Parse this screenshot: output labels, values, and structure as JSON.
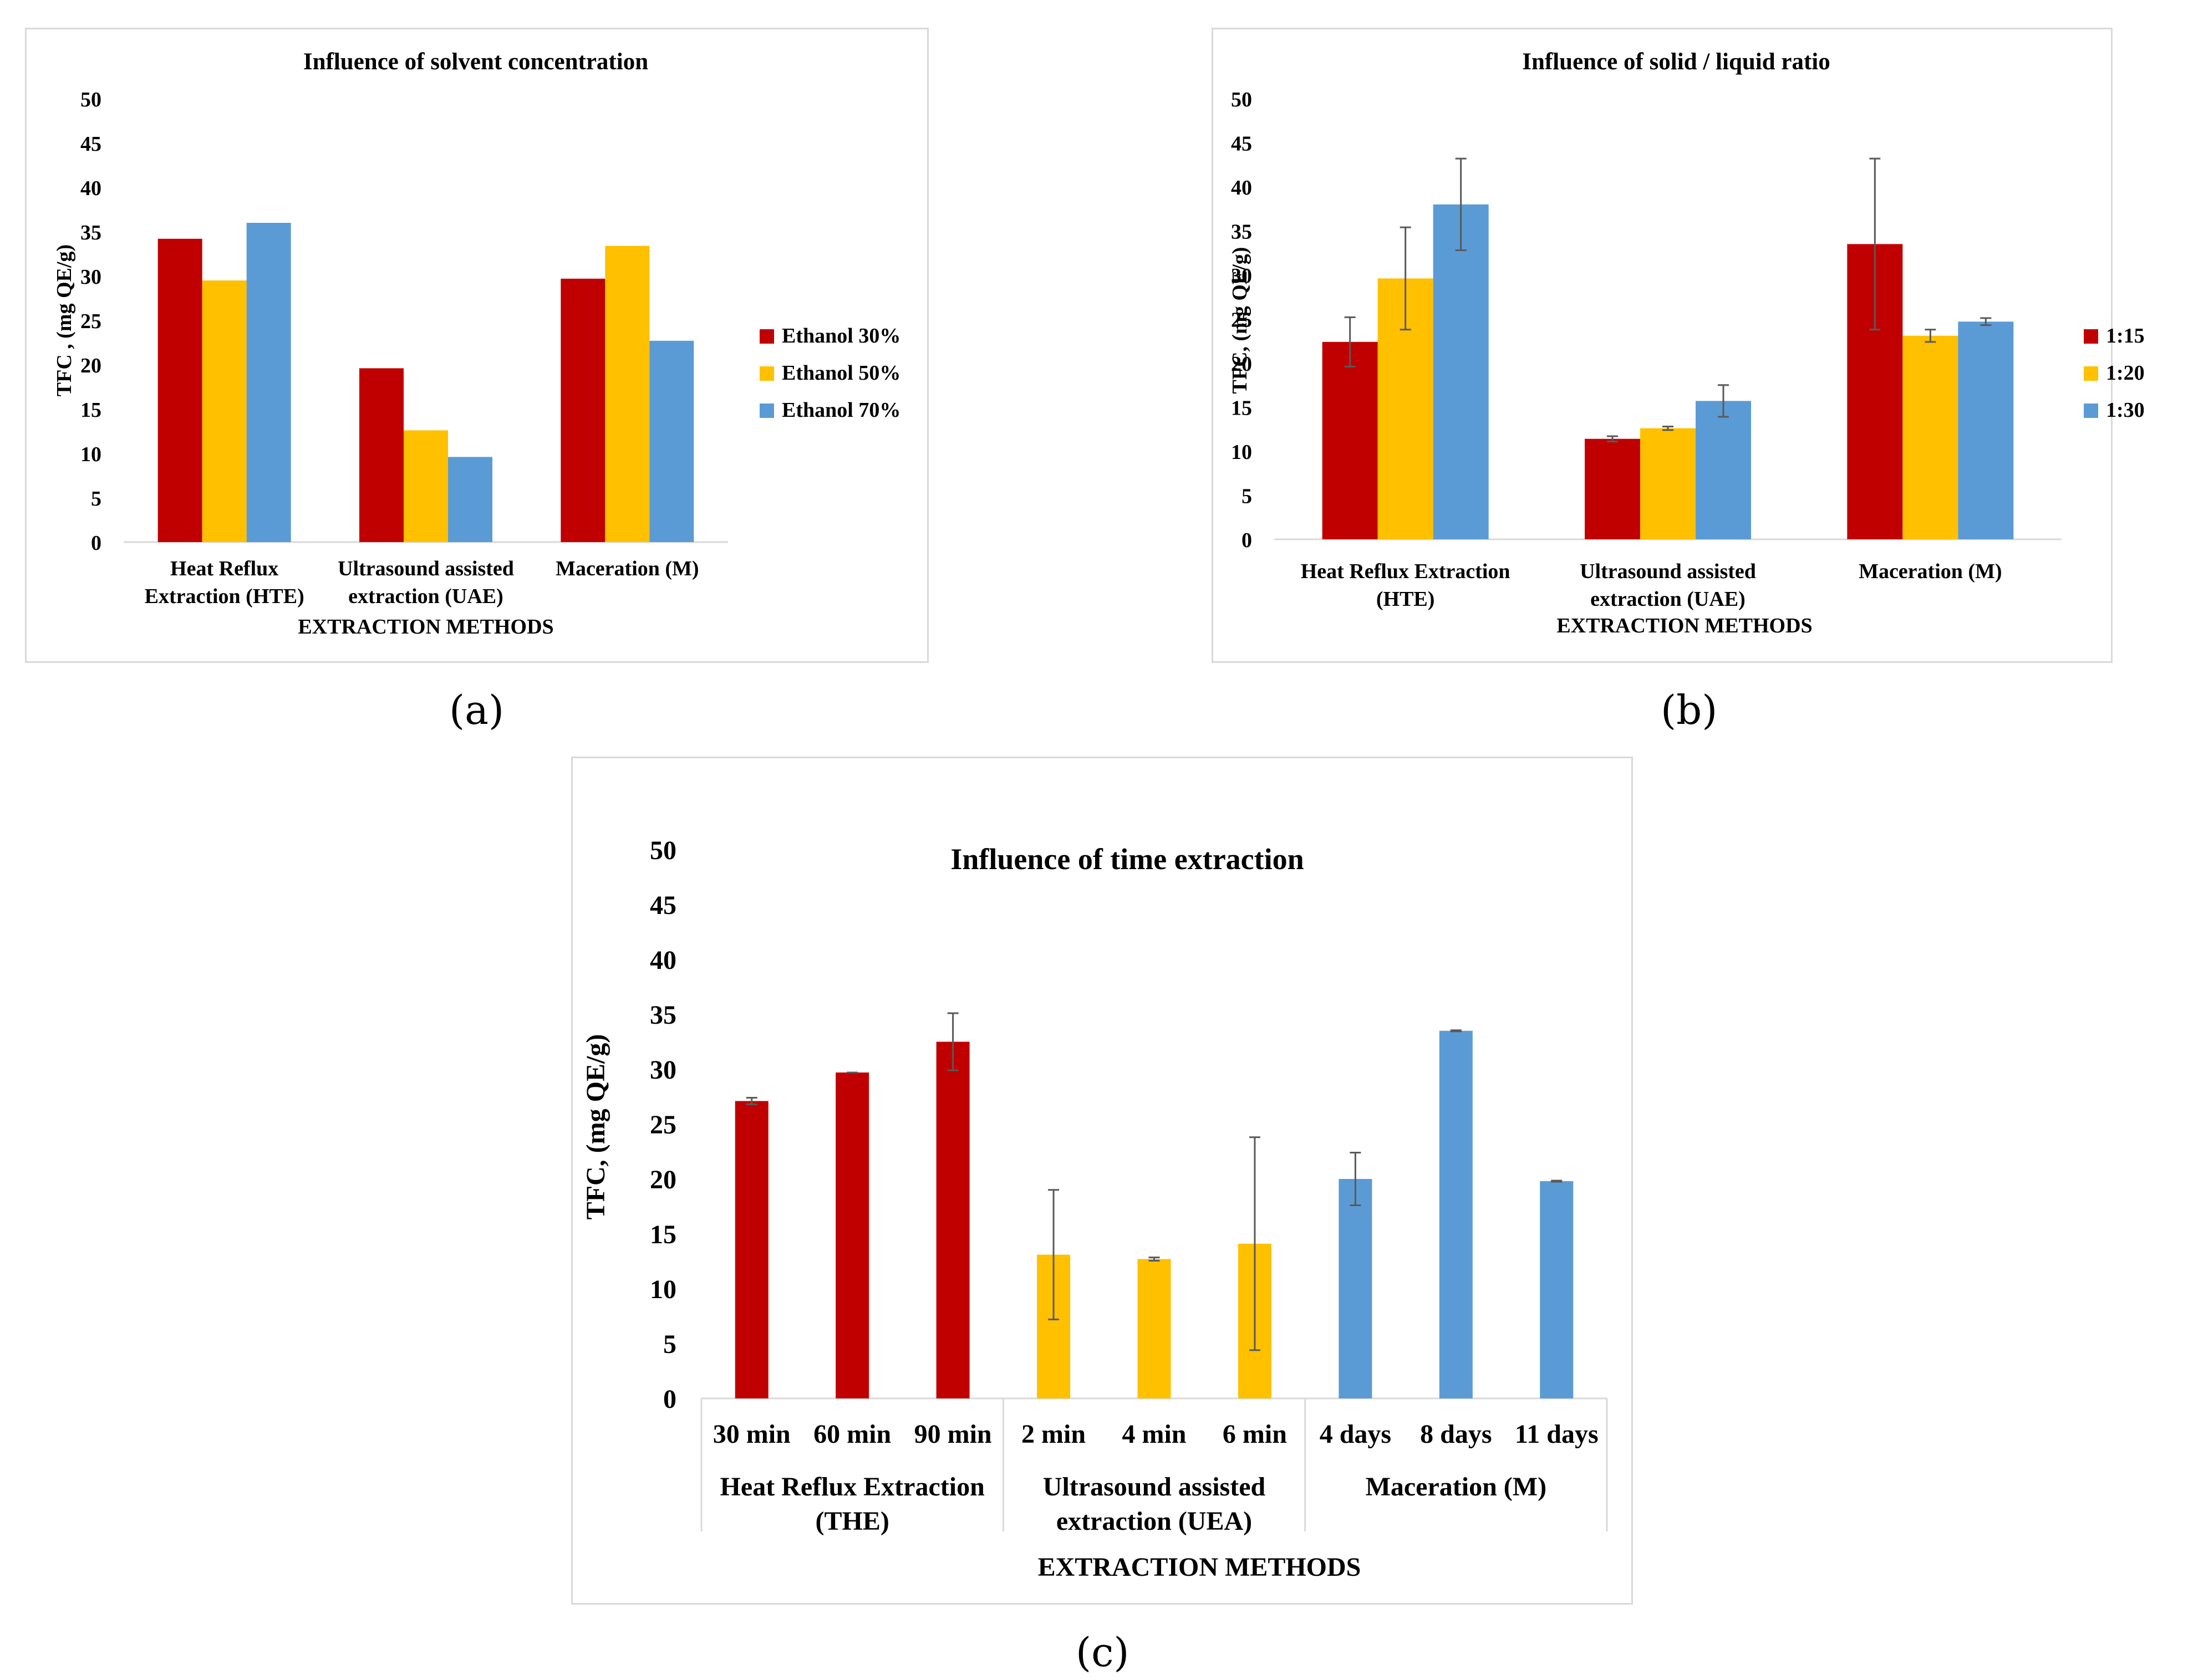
{
  "colors": {
    "red": "#c00000",
    "yellow": "#ffc000",
    "blue": "#5b9bd5",
    "axis": "#d9d9d9",
    "error": "#595959"
  },
  "captions": {
    "a": "a",
    "b": "b",
    "c": "c"
  },
  "chart_data": [
    {
      "id": "a",
      "type": "bar",
      "title": "Influence of solvent concentration",
      "xlabel": "EXTRACTION METHODS",
      "ylabel": "TFC , (mg QE/g)",
      "ylim": [
        0,
        50
      ],
      "yticks": [
        0,
        5,
        10,
        15,
        20,
        25,
        30,
        35,
        40,
        45,
        50
      ],
      "categories": [
        [
          "Heat Reflux",
          "Extraction (HTE)"
        ],
        [
          "Ultrasound assisted",
          "extraction (UAE)"
        ],
        [
          "Maceration (M)"
        ]
      ],
      "legend_position": "right",
      "series": [
        {
          "name": "Ethanol 30%",
          "color": "#c00000",
          "values": [
            34.2,
            19.6,
            29.7
          ]
        },
        {
          "name": "Ethanol 50%",
          "color": "#ffc000",
          "values": [
            29.5,
            12.6,
            33.4
          ]
        },
        {
          "name": "Ethanol 70%",
          "color": "#5b9bd5",
          "values": [
            36.0,
            9.6,
            22.7
          ]
        }
      ]
    },
    {
      "id": "b",
      "type": "bar",
      "title": "Influence of solid / liquid ratio",
      "xlabel": "EXTRACTION METHODS",
      "ylabel": "TFC, (mg QE/g)",
      "ylim": [
        0,
        50
      ],
      "yticks": [
        0,
        5,
        10,
        15,
        20,
        25,
        30,
        35,
        40,
        45,
        50
      ],
      "categories": [
        [
          "Heat Reflux Extraction",
          "(HTE)"
        ],
        [
          "Ultrasound assisted",
          "extraction (UAE)"
        ],
        [
          "Maceration (M)"
        ]
      ],
      "legend_position": "right",
      "series": [
        {
          "name": "1:15",
          "color": "#c00000",
          "values": [
            22.4,
            11.4,
            33.5
          ],
          "errors": [
            2.8,
            0.3,
            9.7
          ]
        },
        {
          "name": "1:20",
          "color": "#ffc000",
          "values": [
            29.6,
            12.6,
            23.1
          ],
          "errors": [
            5.8,
            0.2,
            0.7
          ]
        },
        {
          "name": "1:30",
          "color": "#5b9bd5",
          "values": [
            38.0,
            15.7,
            24.7
          ],
          "errors": [
            5.2,
            1.8,
            0.4
          ]
        }
      ]
    },
    {
      "id": "c",
      "type": "bar",
      "title": "Influence of time extraction",
      "xlabel": "EXTRACTION METHODS",
      "ylabel": "TFC, (mg QE/g)",
      "ylim": [
        0,
        50
      ],
      "yticks": [
        0,
        5,
        10,
        15,
        20,
        25,
        30,
        35,
        40,
        45,
        50
      ],
      "legend_position": "none",
      "groups": [
        {
          "label": [
            "Heat Reflux Extraction",
            "(THE)"
          ],
          "color": "#c00000",
          "bars": [
            {
              "label": "30 min",
              "value": 27.1,
              "error": 0.3
            },
            {
              "label": "60 min",
              "value": 29.7,
              "error": 0.0
            },
            {
              "label": "90 min",
              "value": 32.5,
              "error": 2.6
            }
          ]
        },
        {
          "label": [
            "Ultrasound assisted",
            "extraction (UEA)"
          ],
          "color": "#ffc000",
          "bars": [
            {
              "label": "2 min",
              "value": 13.1,
              "error": 5.9
            },
            {
              "label": "4 min",
              "value": 12.7,
              "error": 0.15
            },
            {
              "label": "6 min",
              "value": 14.1,
              "error": 9.7
            }
          ]
        },
        {
          "label": [
            "Maceration (M)"
          ],
          "color": "#5b9bd5",
          "bars": [
            {
              "label": "4 days",
              "value": 20.0,
              "error": 2.4
            },
            {
              "label": "8 days",
              "value": 33.5,
              "error": 0.05
            },
            {
              "label": "11 days",
              "value": 19.8,
              "error": 0.05
            }
          ]
        }
      ]
    }
  ]
}
